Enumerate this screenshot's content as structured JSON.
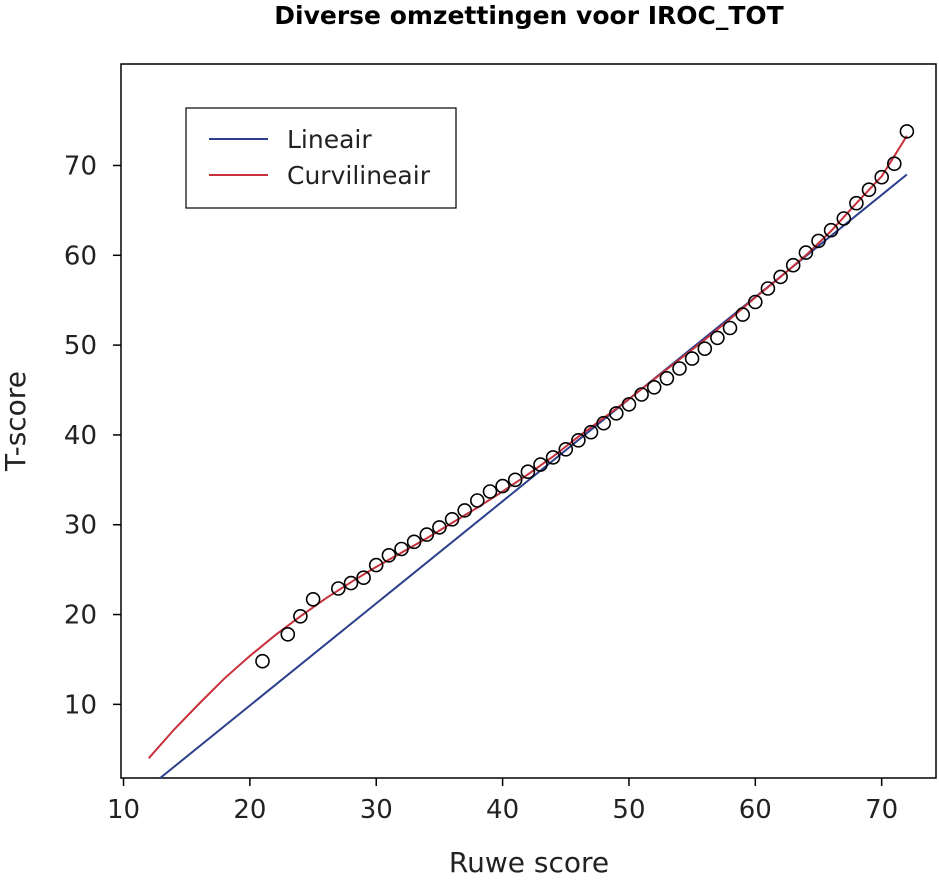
{
  "chart_data": {
    "type": "scatter",
    "title": "Diverse omzettingen voor IROC_TOT",
    "xlabel": "Ruwe score",
    "ylabel": "T-score",
    "xlim": [
      9.8,
      74.3
    ],
    "ylim": [
      1.8,
      81.3
    ],
    "xticks": [
      10,
      20,
      30,
      40,
      50,
      60,
      70
    ],
    "yticks": [
      10,
      20,
      30,
      40,
      50,
      60,
      70
    ],
    "grid": false,
    "legend_position": "top-left",
    "series": [
      {
        "name": "Lineair",
        "kind": "line",
        "color": "#2b3f8c",
        "x": [
          12.9,
          72
        ],
        "y": [
          1.8,
          69
        ]
      },
      {
        "name": "Curvilineair",
        "kind": "line",
        "color": "#c8313b",
        "x": [
          12,
          14,
          16,
          18,
          20,
          22,
          24,
          26,
          28,
          30,
          32,
          34,
          36,
          38,
          40,
          42,
          44,
          46,
          48,
          50,
          52,
          54,
          56,
          58,
          60,
          62,
          64,
          66,
          68,
          70,
          72
        ],
        "y": [
          4.0,
          7.2,
          10.1,
          12.9,
          15.4,
          17.7,
          19.8,
          21.8,
          23.6,
          25.3,
          26.9,
          28.5,
          30.2,
          31.9,
          33.7,
          35.6,
          37.6,
          39.8,
          41.9,
          44.0,
          46.2,
          48.4,
          50.6,
          52.9,
          55.3,
          57.6,
          60.0,
          62.7,
          65.8,
          68.8,
          73.3
        ]
      },
      {
        "name": "",
        "kind": "points",
        "color": "#000000",
        "x": [
          21,
          23,
          24,
          25,
          27,
          28,
          29,
          30,
          31,
          32,
          33,
          34,
          35,
          36,
          37,
          38,
          39,
          40,
          41,
          42,
          43,
          44,
          45,
          46,
          47,
          48,
          49,
          50,
          51,
          52,
          53,
          54,
          55,
          56,
          57,
          58,
          59,
          60,
          61,
          62,
          63,
          64,
          65,
          66,
          67,
          68,
          69,
          70,
          71,
          72
        ],
        "y": [
          14.8,
          17.8,
          19.8,
          21.7,
          22.9,
          23.5,
          24.1,
          25.5,
          26.6,
          27.3,
          28.1,
          28.9,
          29.7,
          30.6,
          31.6,
          32.7,
          33.7,
          34.3,
          35.0,
          35.9,
          36.7,
          37.5,
          38.4,
          39.4,
          40.3,
          41.3,
          42.4,
          43.4,
          44.5,
          45.3,
          46.3,
          47.4,
          48.5,
          49.6,
          50.8,
          51.9,
          53.4,
          54.8,
          56.3,
          57.6,
          58.9,
          60.3,
          61.6,
          62.8,
          64.1,
          65.8,
          67.3,
          68.7,
          70.2,
          73.8
        ]
      }
    ]
  }
}
